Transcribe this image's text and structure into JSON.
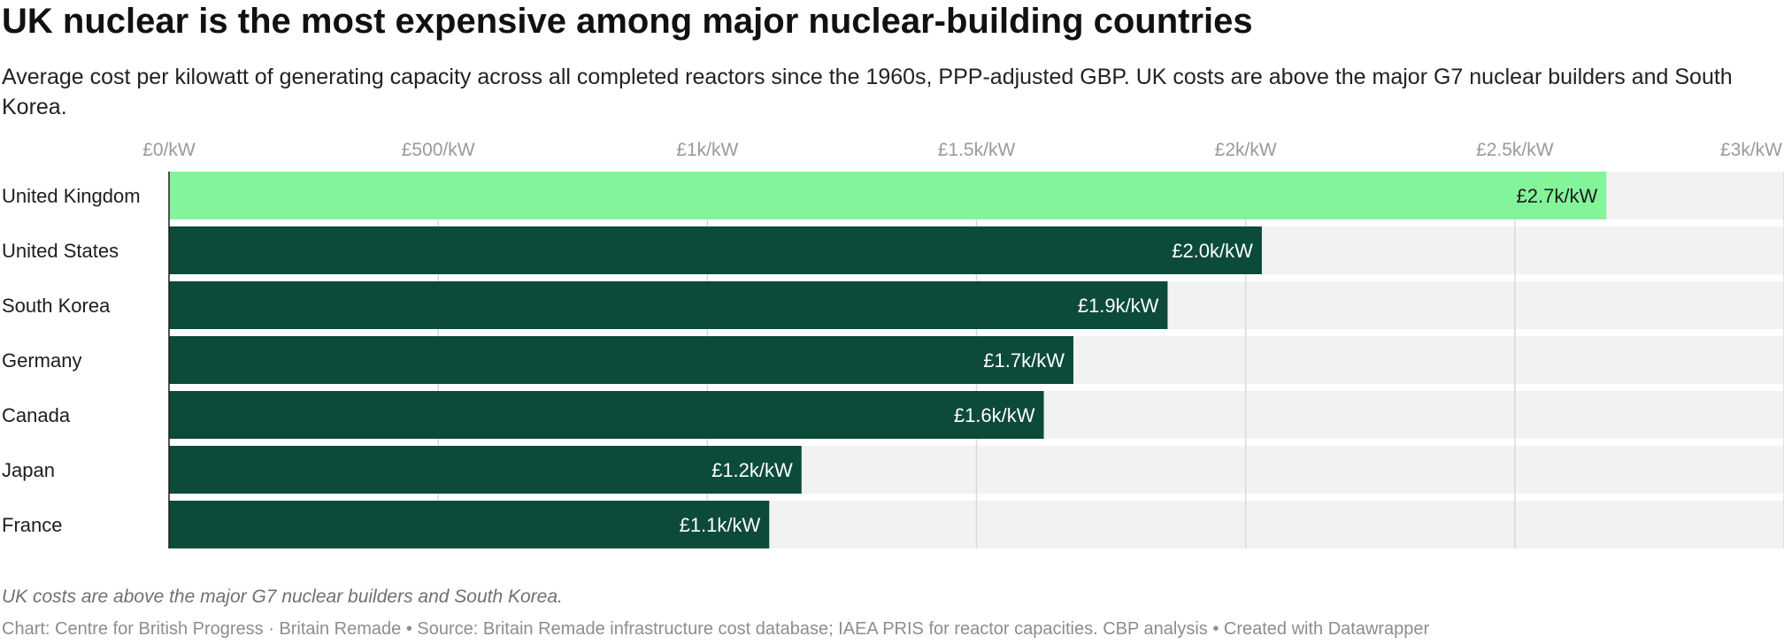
{
  "header": {
    "title": "UK nuclear is the most expensive among major nuclear-building countries",
    "subtitle": "Average cost per kilowatt of generating capacity across all completed reactors since the 1960s, PPP-adjusted GBP. UK costs are above the major G7 nuclear builders and South Korea."
  },
  "footer": {
    "note": "UK costs are above the major G7 nuclear builders and South Korea.",
    "credit": "Chart: Centre for British Progress · Britain Remade • Source: Britain Remade infrastructure cost database; IAEA PRIS for reactor capacities. CBP analysis • Created with Datawrapper"
  },
  "chart_data": {
    "type": "bar",
    "orientation": "horizontal",
    "categories": [
      "United Kingdom",
      "United States",
      "South Korea",
      "Germany",
      "Canada",
      "Japan",
      "France"
    ],
    "values": [
      2.67,
      2.03,
      1.855,
      1.68,
      1.625,
      1.175,
      1.115
    ],
    "value_labels": [
      "£2.7k/kW",
      "£2.0k/kW",
      "£1.9k/kW",
      "£1.7k/kW",
      "£1.6k/kW",
      "£1.2k/kW",
      "£1.1k/kW"
    ],
    "xlim": [
      0,
      3
    ],
    "x_ticks": [
      0,
      0.5,
      1,
      1.5,
      2,
      2.5,
      3
    ],
    "x_tick_labels": [
      "£0/kW",
      "£500/kW",
      "£1k/kW",
      "£1.5k/kW",
      "£2k/kW",
      "£2.5k/kW",
      "£3k/kW"
    ],
    "grid": true,
    "colors": {
      "highlight": "#84f49a",
      "bar": "#0c4a3a",
      "track": "#f2f2f2",
      "grid": "#d9d9d9"
    },
    "highlight_index": 0
  }
}
